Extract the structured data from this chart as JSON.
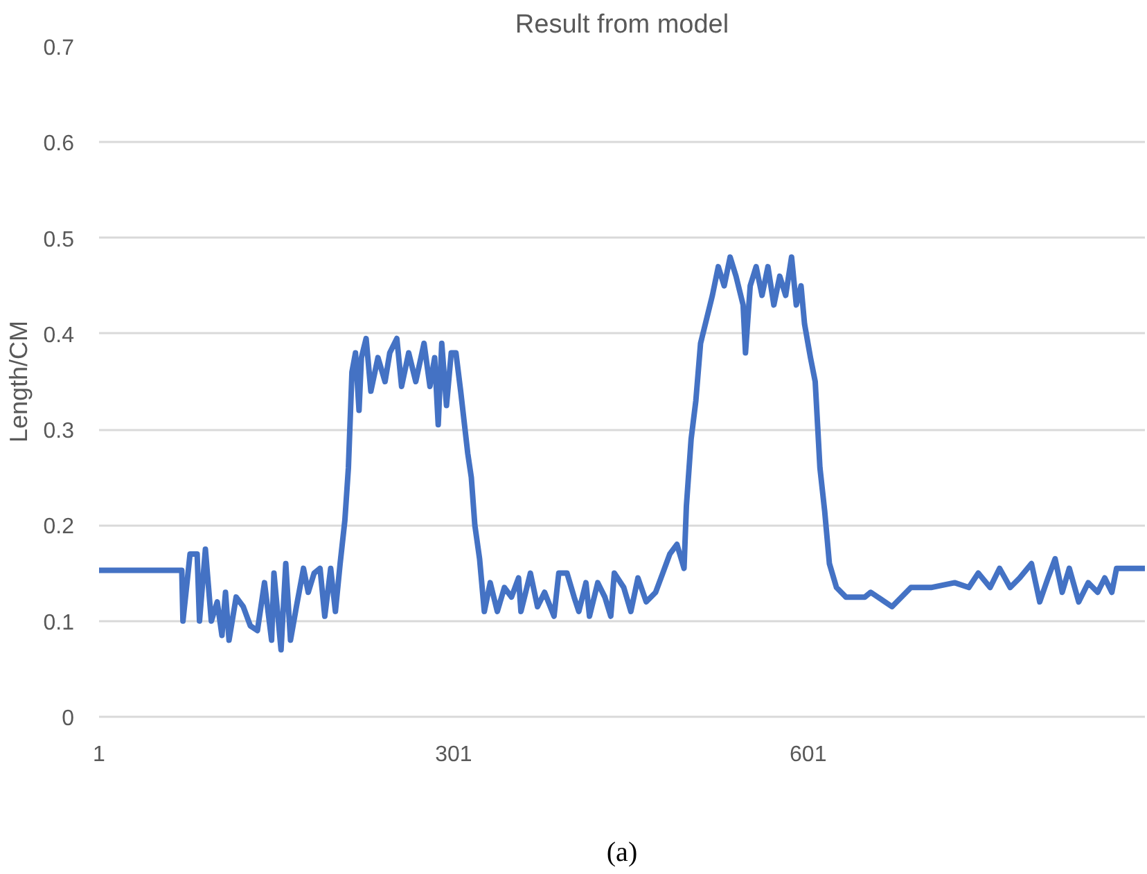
{
  "chart_data": {
    "type": "line",
    "title": "Result from model",
    "ylabel": "Length/CM",
    "annotations": [
      "(a)"
    ],
    "xlim": [
      1,
      886
    ],
    "xticks": [
      1,
      301,
      601
    ],
    "ylim": [
      0,
      0.7
    ],
    "yticks": [
      0,
      0.1,
      0.2,
      0.3,
      0.4,
      0.5,
      0.6,
      0.7
    ],
    "grid": "y",
    "marker": "none",
    "line_style": "solid",
    "series": [
      {
        "color": "#4472c4",
        "x": [
          1,
          71,
          72,
          78,
          84,
          86,
          91,
          96,
          101,
          105,
          108,
          111,
          117,
          123,
          129,
          135,
          141,
          147,
          149,
          155,
          159,
          163,
          168,
          174,
          178,
          183,
          188,
          192,
          197,
          201,
          205,
          209,
          212,
          215,
          218,
          221,
          223,
          227,
          231,
          237,
          243,
          247,
          253,
          257,
          263,
          269,
          276,
          281,
          285,
          288,
          291,
          295,
          299,
          303,
          307,
          313,
          316,
          319,
          323,
          327,
          332,
          338,
          344,
          350,
          356,
          358,
          366,
          372,
          378,
          386,
          390,
          397,
          403,
          407,
          413,
          416,
          423,
          429,
          434,
          437,
          445,
          451,
          457,
          464,
          472,
          478,
          484,
          490,
          496,
          498,
          502,
          506,
          510,
          516,
          520,
          525,
          530,
          535,
          540,
          546,
          548,
          552,
          557,
          562,
          567,
          572,
          577,
          582,
          587,
          591,
          595,
          598,
          603,
          607,
          611,
          615,
          619,
          625,
          633,
          649,
          654,
          672,
          688,
          705,
          725,
          737,
          745,
          755,
          763,
          772,
          780,
          790,
          797,
          804,
          810,
          816,
          822,
          830,
          838,
          846,
          852,
          858,
          862,
          886
        ],
        "values": [
          0.153,
          0.153,
          0.1,
          0.17,
          0.17,
          0.1,
          0.175,
          0.1,
          0.12,
          0.085,
          0.13,
          0.08,
          0.125,
          0.115,
          0.095,
          0.09,
          0.14,
          0.08,
          0.15,
          0.07,
          0.16,
          0.08,
          0.115,
          0.155,
          0.13,
          0.15,
          0.155,
          0.105,
          0.155,
          0.11,
          0.16,
          0.205,
          0.26,
          0.36,
          0.38,
          0.32,
          0.375,
          0.395,
          0.34,
          0.375,
          0.35,
          0.38,
          0.395,
          0.345,
          0.38,
          0.35,
          0.39,
          0.345,
          0.375,
          0.305,
          0.39,
          0.325,
          0.38,
          0.38,
          0.34,
          0.275,
          0.25,
          0.2,
          0.165,
          0.11,
          0.14,
          0.11,
          0.135,
          0.125,
          0.145,
          0.11,
          0.15,
          0.115,
          0.13,
          0.105,
          0.15,
          0.15,
          0.125,
          0.11,
          0.14,
          0.105,
          0.14,
          0.125,
          0.105,
          0.15,
          0.135,
          0.11,
          0.145,
          0.12,
          0.13,
          0.15,
          0.17,
          0.18,
          0.155,
          0.22,
          0.29,
          0.33,
          0.39,
          0.42,
          0.44,
          0.47,
          0.45,
          0.48,
          0.46,
          0.43,
          0.38,
          0.45,
          0.47,
          0.44,
          0.47,
          0.43,
          0.46,
          0.44,
          0.48,
          0.43,
          0.45,
          0.41,
          0.375,
          0.35,
          0.26,
          0.215,
          0.16,
          0.135,
          0.125,
          0.125,
          0.13,
          0.115,
          0.135,
          0.135,
          0.14,
          0.135,
          0.15,
          0.135,
          0.155,
          0.135,
          0.145,
          0.16,
          0.12,
          0.145,
          0.165,
          0.13,
          0.155,
          0.12,
          0.14,
          0.13,
          0.145,
          0.13,
          0.155,
          0.155
        ]
      }
    ]
  }
}
